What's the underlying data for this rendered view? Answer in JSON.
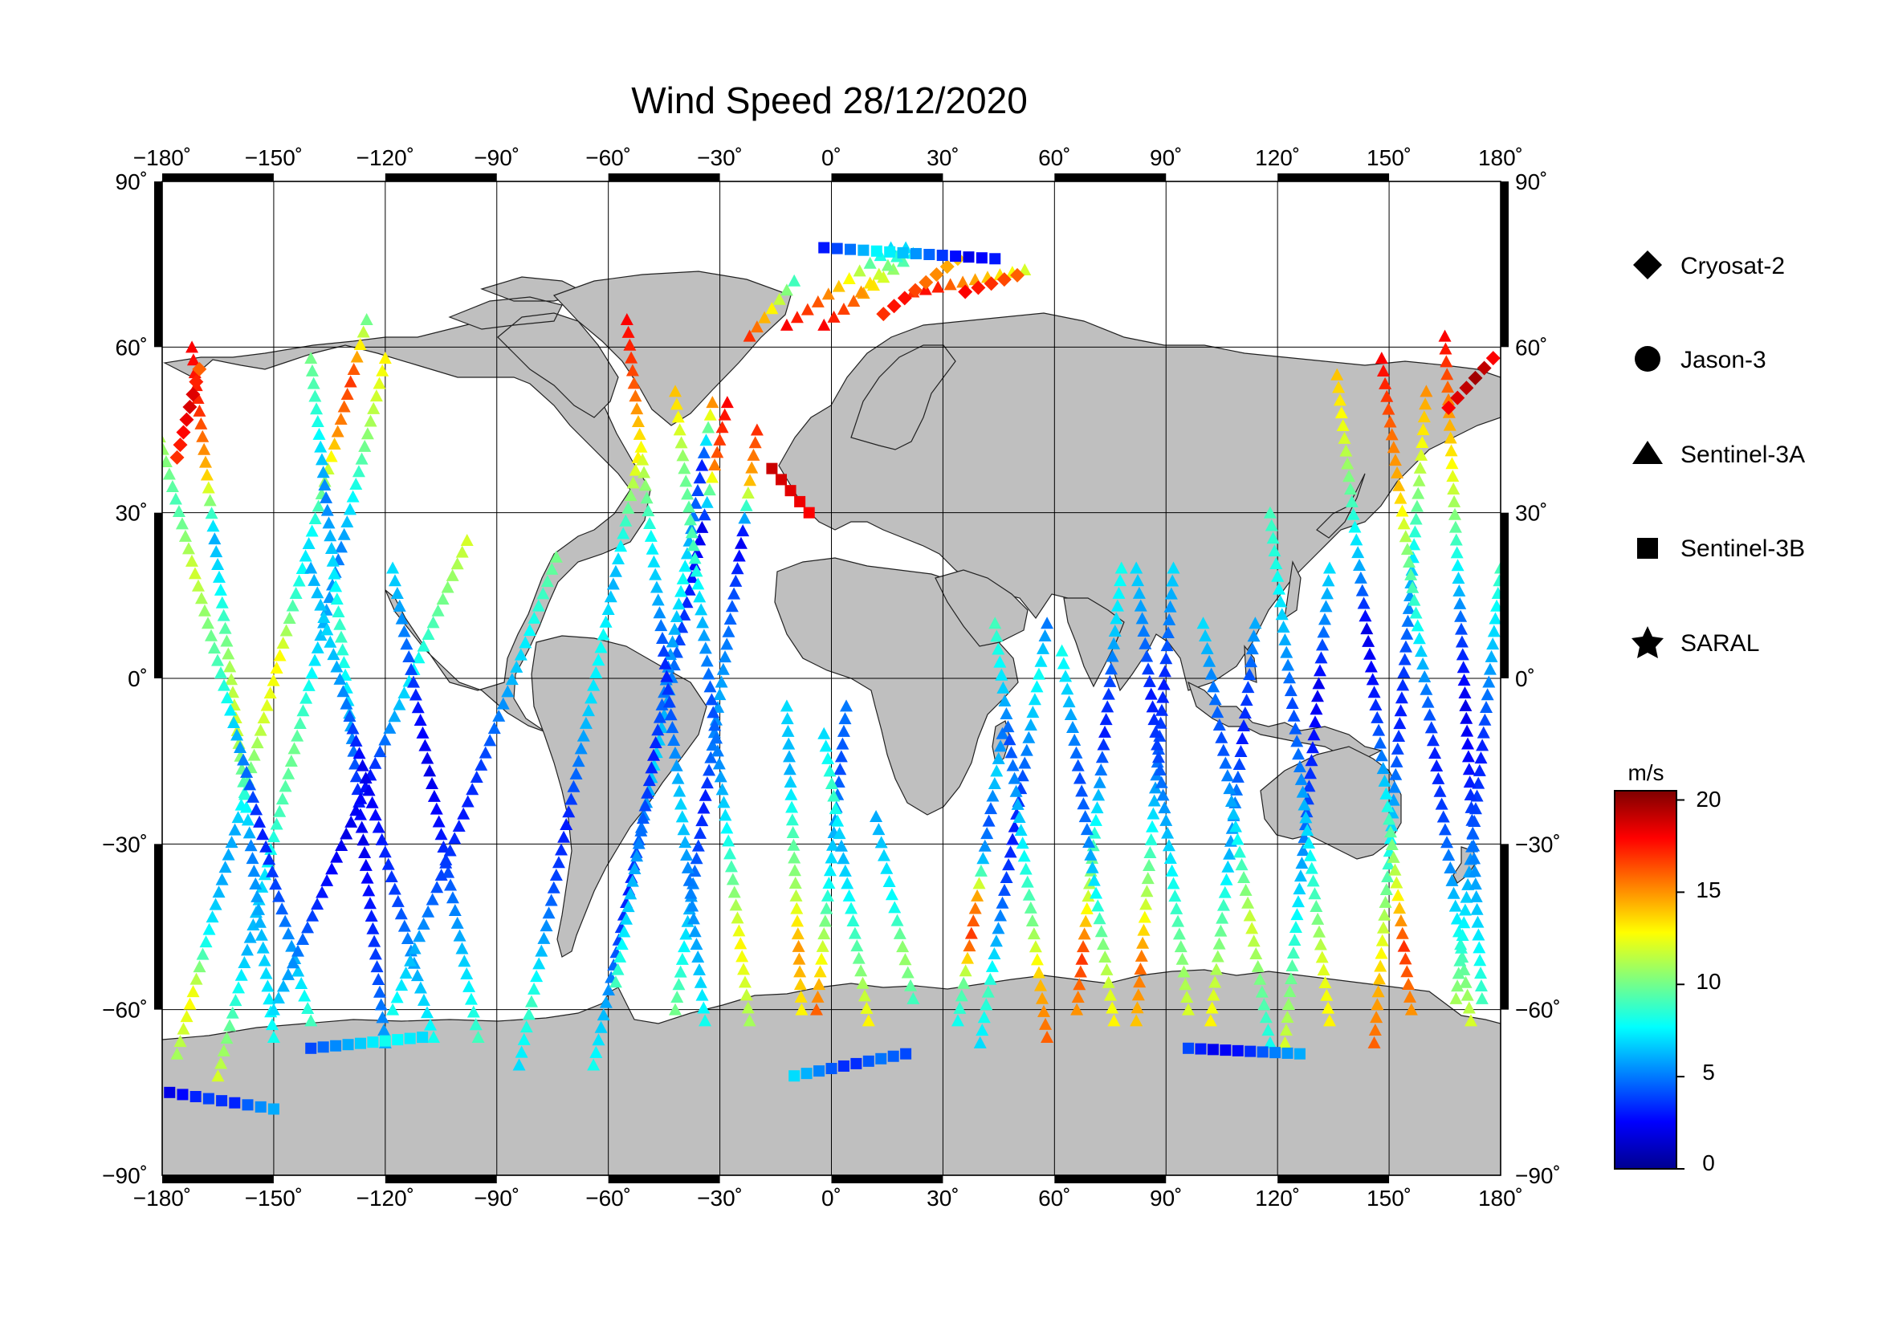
{
  "chart_data": {
    "type": "scatter",
    "title": "Wind Speed 28/12/2020",
    "projection": "equirectangular",
    "x_axis": {
      "range": [
        -180,
        180
      ],
      "ticks": [
        -180,
        -150,
        -120,
        -90,
        -60,
        -30,
        0,
        30,
        60,
        90,
        120,
        150,
        180
      ]
    },
    "y_axis": {
      "range": [
        -90,
        90
      ],
      "ticks": [
        90,
        60,
        30,
        0,
        -30,
        -60,
        -90
      ]
    },
    "x_tick_labels": [
      "−180˚",
      "−150˚",
      "−120˚",
      "−90˚",
      "−60˚",
      "−30˚",
      "0˚",
      "30˚",
      "60˚",
      "90˚",
      "120˚",
      "150˚",
      "180˚"
    ],
    "y_tick_labels": [
      "90˚",
      "60˚",
      "30˚",
      "0˚",
      "−30˚",
      "−60˚",
      "−90˚"
    ],
    "grid": true,
    "land_color": "#bfbfbf",
    "ocean_color": "#ffffff",
    "legend": {
      "position": "right",
      "entries": [
        {
          "name": "Cryosat-2",
          "marker": "diamond"
        },
        {
          "name": "Jason-3",
          "marker": "circle"
        },
        {
          "name": "Sentinel-3A",
          "marker": "triangle"
        },
        {
          "name": "Sentinel-3B",
          "marker": "square"
        },
        {
          "name": "SARAL",
          "marker": "star"
        }
      ]
    },
    "colorbar": {
      "label": "m/s",
      "range": [
        0,
        20.5
      ],
      "ticks": [
        0,
        5,
        10,
        15,
        20
      ],
      "tick_labels": [
        "0",
        "5",
        "10",
        "15",
        "20"
      ],
      "colormap": "jet",
      "position": "right"
    },
    "tracks": [
      {
        "sat": "Sentinel-3A",
        "start": [
          -176,
          -68
        ],
        "end": [
          -125,
          65
        ],
        "speeds": [
          11,
          13,
          8,
          6,
          6,
          10,
          12,
          13,
          9,
          7,
          10,
          15,
          17,
          10
        ]
      },
      {
        "sat": "Sentinel-3A",
        "start": [
          -165,
          -72
        ],
        "end": [
          -120,
          58
        ],
        "speeds": [
          12,
          9,
          6,
          7,
          9,
          10,
          8,
          6,
          5,
          8,
          11,
          13
        ]
      },
      {
        "sat": "Sentinel-3A",
        "start": [
          -150,
          -65
        ],
        "end": [
          -172,
          60
        ],
        "speeds": [
          8,
          7,
          6,
          5,
          9,
          12,
          11,
          8,
          6,
          14,
          17,
          18
        ]
      },
      {
        "sat": "Sentinel-3A",
        "start": [
          -140,
          -62
        ],
        "end": [
          -185,
          55
        ],
        "speeds": [
          9,
          6,
          4,
          3,
          5,
          8,
          10,
          12,
          9,
          11,
          15
        ]
      },
      {
        "sat": "Sentinel-3A",
        "start": [
          -120,
          -66
        ],
        "end": [
          -140,
          58
        ],
        "speeds": [
          6,
          4,
          3,
          2,
          4,
          7,
          9,
          7,
          5,
          8,
          10
        ]
      },
      {
        "sat": "Sentinel-3A",
        "start": [
          -150,
          -60
        ],
        "end": [
          -98,
          25
        ],
        "speeds": [
          7,
          5,
          3,
          2,
          3,
          6,
          8,
          10,
          12
        ]
      },
      {
        "sat": "Sentinel-3A",
        "start": [
          -107,
          -65
        ],
        "end": [
          -140,
          20
        ],
        "speeds": [
          8,
          6,
          4,
          3,
          2,
          5,
          7,
          6
        ]
      },
      {
        "sat": "Sentinel-3A",
        "start": [
          -95,
          -65
        ],
        "end": [
          -118,
          20
        ],
        "speeds": [
          9,
          7,
          5,
          3,
          2,
          3,
          5,
          7
        ]
      },
      {
        "sat": "Sentinel-3A",
        "start": [
          -118,
          -60
        ],
        "end": [
          -74,
          22
        ],
        "speeds": [
          8,
          6,
          4,
          3,
          4,
          6,
          8,
          10
        ]
      },
      {
        "sat": "Sentinel-3A",
        "start": [
          -84,
          -70
        ],
        "end": [
          -52,
          40
        ],
        "speeds": [
          7,
          9,
          6,
          4,
          3,
          5,
          7,
          8,
          6,
          9,
          13
        ]
      },
      {
        "sat": "Sentinel-3A",
        "start": [
          -64,
          -70
        ],
        "end": [
          -28,
          50
        ],
        "speeds": [
          8,
          6,
          4,
          3,
          5,
          7,
          6,
          4,
          3,
          2,
          16,
          18
        ]
      },
      {
        "sat": "Sentinel-3A",
        "start": [
          -58,
          -55
        ],
        "end": [
          -32,
          50
        ],
        "speeds": [
          9,
          7,
          6,
          4,
          3,
          5,
          6,
          8,
          5,
          3,
          15
        ]
      },
      {
        "sat": "Sentinel-3A",
        "start": [
          -42,
          -60
        ],
        "end": [
          -20,
          45
        ],
        "speeds": [
          10,
          8,
          6,
          4,
          3,
          5,
          6,
          5,
          4,
          2,
          14,
          17
        ]
      },
      {
        "sat": "Sentinel-3A",
        "start": [
          -34,
          -62
        ],
        "end": [
          -55,
          65
        ],
        "speeds": [
          8,
          6,
          5,
          7,
          5,
          3,
          6,
          8,
          12,
          16,
          18
        ]
      },
      {
        "sat": "Sentinel-3A",
        "start": [
          -22,
          -62
        ],
        "end": [
          -42,
          52
        ],
        "speeds": [
          11,
          13,
          9,
          6,
          4,
          6,
          9,
          10,
          14
        ]
      },
      {
        "sat": "Sentinel-3A",
        "start": [
          -8,
          -60
        ],
        "end": [
          -12,
          -5
        ],
        "speeds": [
          13,
          15,
          11,
          9,
          6,
          7
        ]
      },
      {
        "sat": "Sentinel-3A",
        "start": [
          -4,
          -60
        ],
        "end": [
          4,
          -5
        ],
        "speeds": [
          16,
          12,
          8,
          6,
          4,
          5
        ]
      },
      {
        "sat": "Sentinel-3A",
        "start": [
          10,
          -62
        ],
        "end": [
          -2,
          -10
        ],
        "speeds": [
          13,
          10,
          8,
          6,
          9,
          7
        ]
      },
      {
        "sat": "Sentinel-3A",
        "start": [
          22,
          -58
        ],
        "end": [
          12,
          -25
        ],
        "speeds": [
          9,
          11,
          8,
          7,
          6
        ]
      },
      {
        "sat": "Sentinel-3A",
        "start": [
          34,
          -62
        ],
        "end": [
          46,
          -10
        ],
        "speeds": [
          8,
          10,
          17,
          15,
          6,
          4,
          7,
          5
        ]
      },
      {
        "sat": "Sentinel-3A",
        "start": [
          40,
          -66
        ],
        "end": [
          58,
          10
        ],
        "speeds": [
          7,
          9,
          6,
          4,
          3,
          4,
          6,
          8,
          5
        ]
      },
      {
        "sat": "Sentinel-3A",
        "start": [
          58,
          -65
        ],
        "end": [
          44,
          10
        ],
        "speeds": [
          16,
          14,
          10,
          8,
          6,
          4,
          7,
          9
        ]
      },
      {
        "sat": "Sentinel-3A",
        "start": [
          66,
          -60
        ],
        "end": [
          78,
          20
        ],
        "speeds": [
          15,
          17,
          12,
          9,
          6,
          3,
          4,
          7,
          8
        ]
      },
      {
        "sat": "Sentinel-3A",
        "start": [
          76,
          -62
        ],
        "end": [
          62,
          5
        ],
        "speeds": [
          13,
          11,
          8,
          5,
          4,
          6,
          8
        ]
      },
      {
        "sat": "Sentinel-3A",
        "start": [
          82,
          -62
        ],
        "end": [
          92,
          20
        ],
        "speeds": [
          14,
          16,
          12,
          9,
          6,
          4,
          3,
          5,
          7
        ]
      },
      {
        "sat": "Sentinel-3A",
        "start": [
          96,
          -60
        ],
        "end": [
          82,
          20
        ],
        "speeds": [
          12,
          10,
          8,
          6,
          4,
          3,
          5,
          7
        ]
      },
      {
        "sat": "Sentinel-3A",
        "start": [
          102,
          -62
        ],
        "end": [
          114,
          10
        ],
        "speeds": [
          13,
          11,
          9,
          6,
          5,
          3,
          4,
          6
        ]
      },
      {
        "sat": "Sentinel-3A",
        "start": [
          118,
          -66
        ],
        "end": [
          100,
          10
        ],
        "speeds": [
          8,
          10,
          12,
          9,
          6,
          4,
          5,
          7
        ]
      },
      {
        "sat": "Sentinel-3A",
        "start": [
          122,
          -66
        ],
        "end": [
          134,
          20
        ],
        "speeds": [
          12,
          10,
          8,
          6,
          4,
          3,
          2,
          5,
          7
        ]
      },
      {
        "sat": "Sentinel-3A",
        "start": [
          134,
          -62
        ],
        "end": [
          118,
          30
        ],
        "speeds": [
          13,
          12,
          9,
          7,
          5,
          4,
          6,
          8,
          9
        ]
      },
      {
        "sat": "Sentinel-3A",
        "start": [
          146,
          -66
        ],
        "end": [
          160,
          52
        ],
        "speeds": [
          16,
          14,
          11,
          8,
          5,
          3,
          4,
          6,
          9,
          12,
          15
        ]
      },
      {
        "sat": "Sentinel-3A",
        "start": [
          156,
          -60
        ],
        "end": [
          136,
          55
        ],
        "speeds": [
          15,
          17,
          12,
          9,
          5,
          3,
          2,
          6,
          9,
          12,
          14
        ]
      },
      {
        "sat": "Sentinel-3A",
        "start": [
          172,
          -62
        ],
        "end": [
          148,
          58
        ],
        "speeds": [
          12,
          9,
          6,
          4,
          3,
          5,
          8,
          10,
          14,
          16,
          18
        ]
      },
      {
        "sat": "Sentinel-3A",
        "start": [
          168,
          -58
        ],
        "end": [
          180,
          20
        ],
        "speeds": [
          11,
          8,
          6,
          4,
          3,
          5,
          7,
          9
        ]
      },
      {
        "sat": "Sentinel-3A",
        "start": [
          175,
          -58
        ],
        "end": [
          165,
          62
        ],
        "speeds": [
          9,
          7,
          5,
          3,
          2,
          4,
          8,
          12,
          15,
          18
        ]
      },
      {
        "sat": "Sentinel-3A",
        "start": [
          -12,
          64
        ],
        "end": [
          16,
          78
        ],
        "speeds": [
          18,
          17,
          16,
          14,
          12,
          9,
          7
        ]
      },
      {
        "sat": "Sentinel-3A",
        "start": [
          -2,
          64
        ],
        "end": [
          22,
          77
        ],
        "speeds": [
          18,
          17,
          16,
          14,
          12,
          10,
          8
        ]
      },
      {
        "sat": "Sentinel-3A",
        "start": [
          8,
          70
        ],
        "end": [
          20,
          78
        ],
        "speeds": [
          15,
          13,
          11,
          9,
          7
        ]
      },
      {
        "sat": "Sentinel-3A",
        "start": [
          22,
          70
        ],
        "end": [
          52,
          74
        ],
        "speeds": [
          17,
          18,
          16,
          15,
          14,
          13,
          12
        ]
      },
      {
        "sat": "Sentinel-3A",
        "start": [
          -22,
          62
        ],
        "end": [
          -10,
          72
        ],
        "speeds": [
          17,
          15,
          13,
          11,
          9
        ]
      },
      {
        "sat": "Cryosat-2",
        "start": [
          14,
          66
        ],
        "end": [
          34,
          76
        ],
        "speeds": [
          17,
          18,
          16,
          15,
          14
        ]
      },
      {
        "sat": "Cryosat-2",
        "start": [
          36,
          70
        ],
        "end": [
          50,
          73
        ],
        "speeds": [
          18,
          17,
          16
        ]
      },
      {
        "sat": "Cryosat-2",
        "start": [
          166,
          49
        ],
        "end": [
          178,
          58
        ],
        "speeds": [
          18,
          19,
          20,
          18
        ]
      },
      {
        "sat": "Cryosat-2",
        "start": [
          -176,
          40
        ],
        "end": [
          -170,
          56
        ],
        "speeds": [
          17,
          18,
          19,
          16
        ]
      },
      {
        "sat": "Sentinel-3B",
        "start": [
          -178,
          -75
        ],
        "end": [
          -150,
          -78
        ],
        "speeds": [
          2,
          3,
          4,
          3,
          5,
          6
        ]
      },
      {
        "sat": "Sentinel-3B",
        "start": [
          -140,
          -67
        ],
        "end": [
          -110,
          -65
        ],
        "speeds": [
          4,
          6,
          8,
          7
        ]
      },
      {
        "sat": "Sentinel-3B",
        "start": [
          -10,
          -72
        ],
        "end": [
          20,
          -68
        ],
        "speeds": [
          7,
          5,
          3,
          5,
          4
        ]
      },
      {
        "sat": "Sentinel-3B",
        "start": [
          -2,
          78
        ],
        "end": [
          44,
          76
        ],
        "speeds": [
          3,
          5,
          8,
          6,
          4,
          2,
          3
        ]
      },
      {
        "sat": "Sentinel-3B",
        "start": [
          96,
          -67
        ],
        "end": [
          126,
          -68
        ],
        "speeds": [
          4,
          2,
          3,
          5,
          6
        ]
      },
      {
        "sat": "Sentinel-3B",
        "start": [
          -16,
          38
        ],
        "end": [
          -6,
          30
        ],
        "speeds": [
          19,
          18
        ]
      }
    ]
  }
}
